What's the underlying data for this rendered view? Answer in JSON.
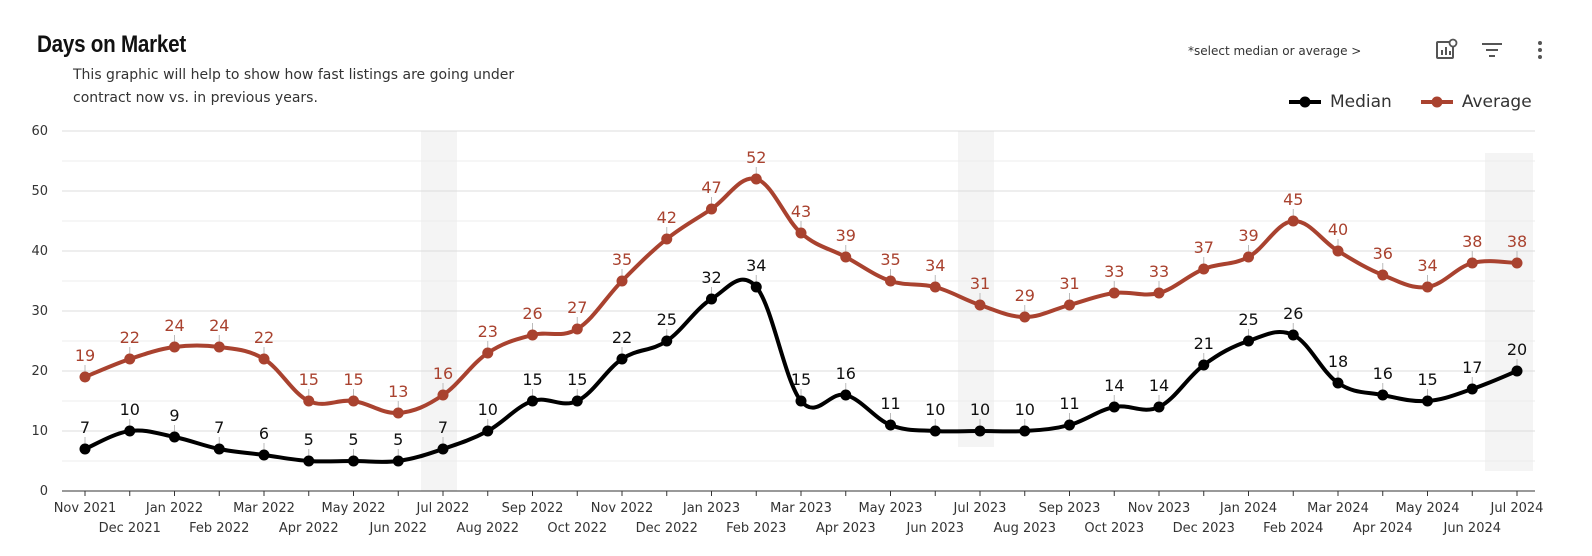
{
  "header": {
    "title": "Days on Market",
    "subtitle": "This graphic will help to show how fast listings are going under contract now vs. in previous years.",
    "hint": "*select median or average >"
  },
  "toolbar": {
    "icons": [
      "chart-settings-icon",
      "filter-icon",
      "more-vertical-icon"
    ]
  },
  "colors": {
    "median": "#000000",
    "average": "#a9422f",
    "grid": "#dcdcdc",
    "highlight": "#f4f4f4"
  },
  "chart_data": {
    "type": "line",
    "title": "Days on Market",
    "xlabel": "",
    "ylabel": "",
    "ylim": [
      0,
      60
    ],
    "yticks": [
      0,
      10,
      20,
      30,
      40,
      50,
      60
    ],
    "grid": true,
    "legend_position": "top-right",
    "categories": [
      "Nov 2021",
      "Dec 2021",
      "Jan 2022",
      "Feb 2022",
      "Mar 2022",
      "Apr 2022",
      "May 2022",
      "Jun 2022",
      "Jul 2022",
      "Aug 2022",
      "Sep 2022",
      "Oct 2022",
      "Nov 2022",
      "Dec 2022",
      "Jan 2023",
      "Feb 2023",
      "Mar 2023",
      "Apr 2023",
      "May 2023",
      "Jun 2023",
      "Jul 2023",
      "Aug 2023",
      "Sep 2023",
      "Oct 2023",
      "Nov 2023",
      "Dec 2023",
      "Jan 2024",
      "Feb 2024",
      "Mar 2024",
      "Apr 2024",
      "May 2024",
      "Jun 2024",
      "Jul 2024"
    ],
    "highlighted_months": [
      "Jul 2022",
      "Jul 2023",
      "Jul 2024"
    ],
    "series": [
      {
        "name": "Median",
        "color": "#000000",
        "values": [
          7,
          10,
          9,
          7,
          6,
          5,
          5,
          5,
          7,
          10,
          15,
          15,
          22,
          25,
          32,
          34,
          15,
          16,
          11,
          10,
          10,
          10,
          11,
          14,
          14,
          21,
          25,
          26,
          18,
          16,
          15,
          17,
          20
        ]
      },
      {
        "name": "Average",
        "color": "#a9422f",
        "values": [
          19,
          22,
          24,
          24,
          22,
          15,
          15,
          13,
          16,
          23,
          26,
          27,
          35,
          42,
          47,
          52,
          43,
          39,
          35,
          34,
          31,
          29,
          31,
          33,
          33,
          37,
          39,
          45,
          40,
          36,
          34,
          38,
          38
        ]
      }
    ]
  }
}
